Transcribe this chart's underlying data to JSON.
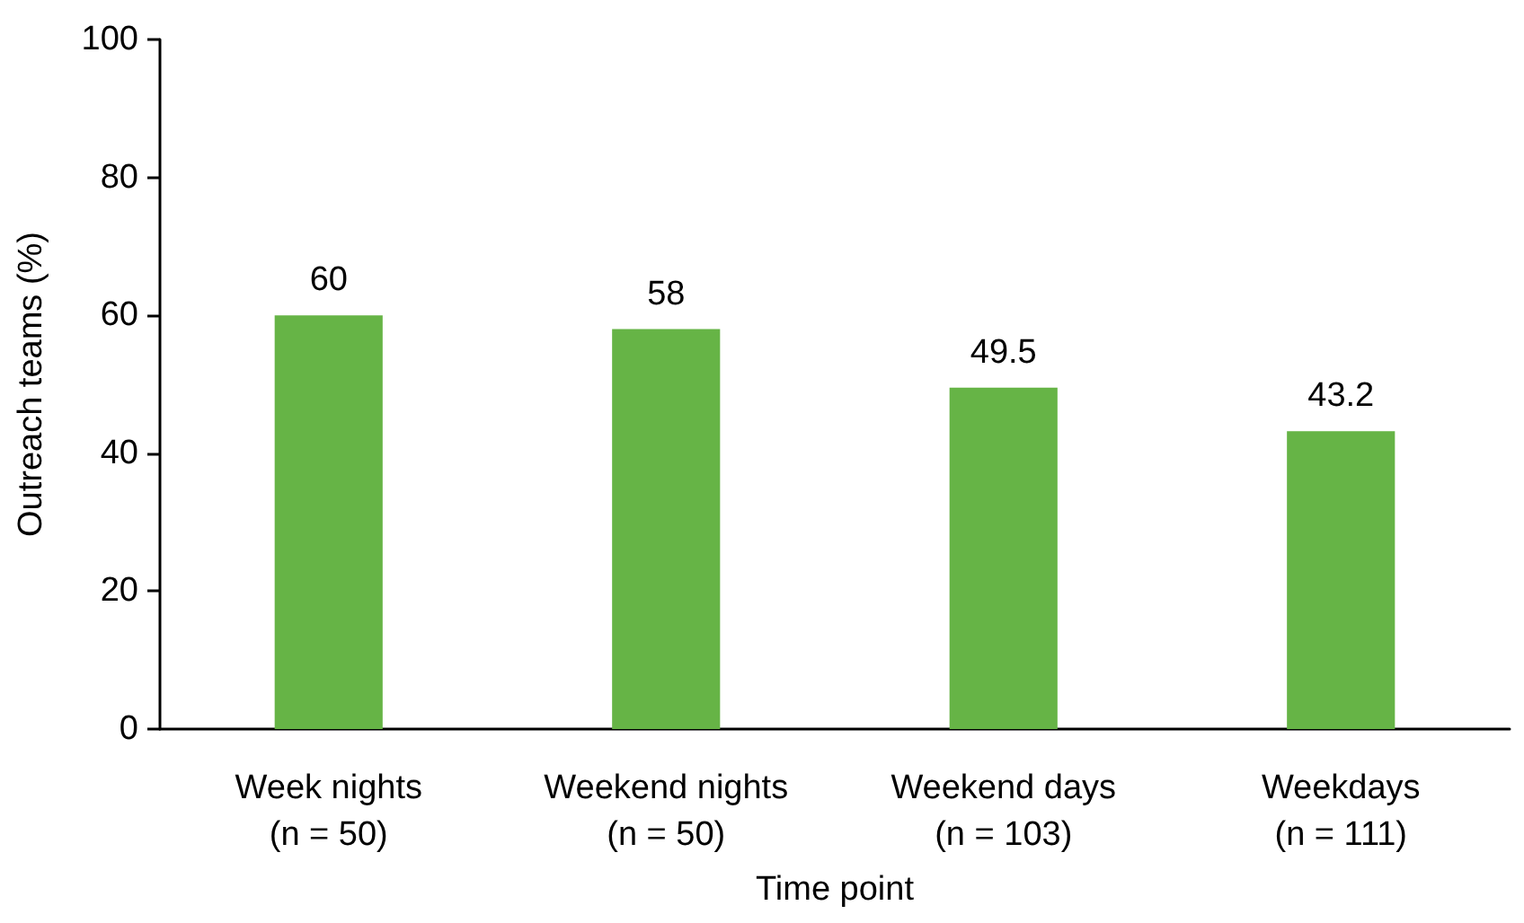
{
  "chart_data": {
    "type": "bar",
    "xlabel": "Time point",
    "ylabel": "Outreach teams (%)",
    "categories": [
      "Week nights\n(n = 50)",
      "Weekend nights\n(n = 50)",
      "Weekend days\n(n = 103)",
      "Weekdays\n(n = 111)"
    ],
    "values": [
      60,
      58,
      49.5,
      43.2
    ],
    "color": "#66b446",
    "ylim": [
      0,
      100
    ],
    "yticks": [
      0,
      20,
      40,
      60,
      80,
      100
    ],
    "grid": false,
    "data_labels": true
  }
}
